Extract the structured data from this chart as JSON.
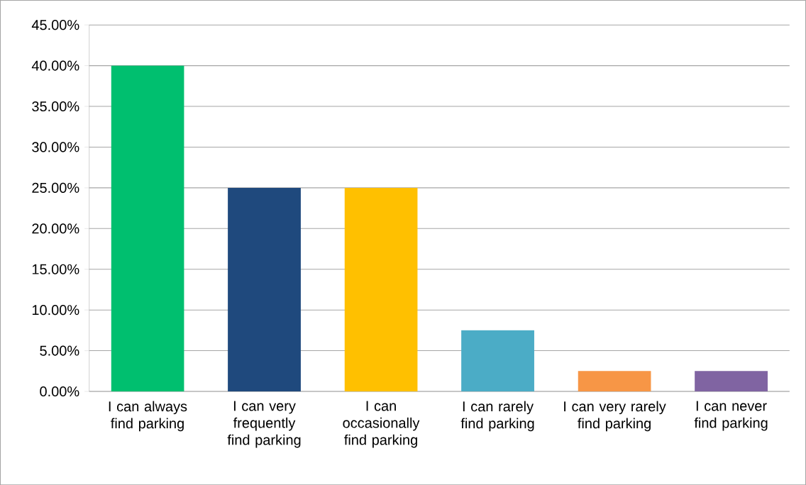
{
  "chart_data": {
    "type": "bar",
    "categories": [
      "I can always find parking",
      "I can very frequently find parking",
      "I can occasionally find parking",
      "I can rarely find parking",
      "I can very rarely find parking",
      "I can never find parking"
    ],
    "values": [
      40,
      25,
      25,
      7.5,
      2.5,
      2.5
    ],
    "colors": [
      "#00bf6f",
      "#1f497d",
      "#ffc000",
      "#4bacc6",
      "#f79646",
      "#8064a2"
    ],
    "ylim": [
      0,
      45
    ],
    "yticks": [
      {
        "value": 0,
        "label": "0.00%"
      },
      {
        "value": 5,
        "label": "5.00%"
      },
      {
        "value": 10,
        "label": "10.00%"
      },
      {
        "value": 15,
        "label": "15.00%"
      },
      {
        "value": 20,
        "label": "20.00%"
      },
      {
        "value": 25,
        "label": "25.00%"
      },
      {
        "value": 30,
        "label": "30.00%"
      },
      {
        "value": 35,
        "label": "35.00%"
      },
      {
        "value": 40,
        "label": "40.00%"
      },
      {
        "value": 45,
        "label": "45.00%"
      }
    ],
    "grid": "y"
  }
}
